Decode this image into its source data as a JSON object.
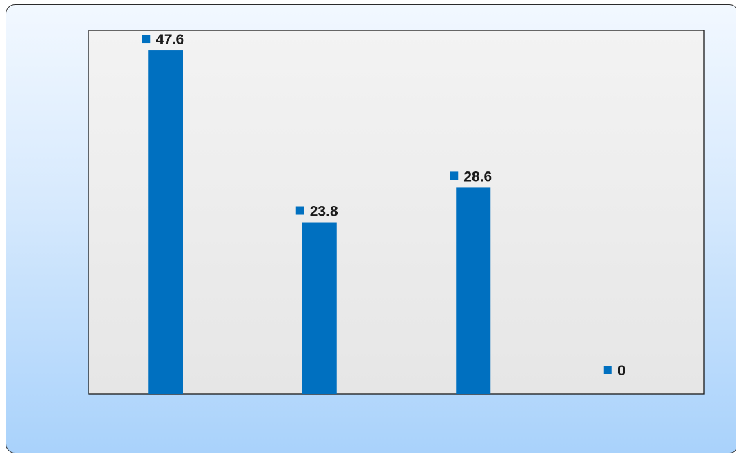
{
  "chart_data": {
    "type": "bar",
    "categories": [
      "",
      "",
      "",
      ""
    ],
    "values": [
      47.6,
      23.8,
      28.6,
      0
    ],
    "data_labels": [
      "47.6",
      "23.8",
      "28.6",
      "0"
    ],
    "ylim": [
      0,
      50
    ],
    "grid": false,
    "legend": "none",
    "colors": {
      "bar": "#0070C0",
      "plot_background": "#efefef",
      "frame_border": "#2b2b2b"
    }
  }
}
